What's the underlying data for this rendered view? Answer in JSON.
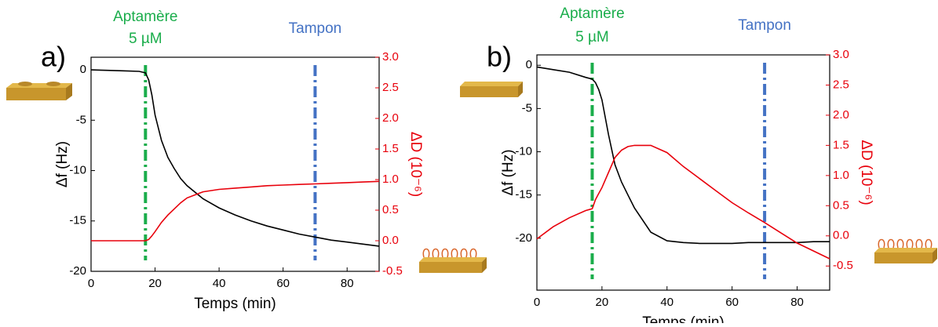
{
  "chart_data": [
    {
      "type": "line",
      "panel_label": "a)",
      "x_label": "Temps (min)",
      "y_label": "Δf (Hz)",
      "y2_label": "ΔD (10⁻⁶)",
      "x": [
        0,
        5,
        10,
        15,
        17,
        18,
        19,
        20,
        22,
        24,
        26,
        28,
        30,
        35,
        40,
        45,
        50,
        55,
        60,
        65,
        70,
        75,
        80,
        85,
        90
      ],
      "series": [
        {
          "name": "Δf",
          "color": "#000000",
          "values": [
            0,
            -0.05,
            -0.1,
            -0.15,
            -0.3,
            -1,
            -2.5,
            -4.5,
            -7,
            -8.7,
            -9.8,
            -10.8,
            -11.5,
            -12.8,
            -13.7,
            -14.4,
            -15,
            -15.5,
            -15.9,
            -16.3,
            -16.6,
            -16.9,
            -17.1,
            -17.3,
            -17.5
          ]
        },
        {
          "name": "ΔD",
          "color": "#e8000b",
          "axis": "y2",
          "values": [
            0,
            0,
            0,
            0,
            0,
            0.02,
            0.08,
            0.15,
            0.3,
            0.42,
            0.52,
            0.62,
            0.7,
            0.8,
            0.84,
            0.86,
            0.88,
            0.9,
            0.91,
            0.92,
            0.93,
            0.94,
            0.95,
            0.96,
            0.97
          ]
        }
      ],
      "xlim": [
        0,
        90
      ],
      "xticks": [
        0,
        20,
        40,
        60,
        80
      ],
      "ylim": [
        -20,
        1.25
      ],
      "yticks": [
        0,
        -5,
        -10,
        -15,
        -20
      ],
      "y2lim": [
        -0.5,
        3.0
      ],
      "y2ticks": [
        {
          "value": 3,
          "label": "3.0"
        },
        2.5,
        {
          "value": 2,
          "label": "2.0"
        },
        1.5,
        {
          "value": 1,
          "label": "1.0"
        },
        0.5,
        {
          "value": 0,
          "label": "0.0"
        },
        -0.5
      ],
      "annotations": [
        {
          "lines": [
            "Aptamère",
            "5 µM"
          ],
          "x": 17,
          "color": "#1aad4b"
        },
        {
          "lines": [
            "Tampon"
          ],
          "x": 70,
          "color": "#4472c4"
        }
      ]
    },
    {
      "type": "line",
      "panel_label": "b)",
      "x_label": "Temps (min)",
      "y_label": "Δf (Hz)",
      "y2_label": "ΔD (10⁻⁶)",
      "x": [
        0,
        5,
        10,
        15,
        17,
        18,
        19,
        20,
        22,
        24,
        26,
        28,
        30,
        35,
        40,
        45,
        50,
        55,
        60,
        65,
        70,
        75,
        80,
        85,
        90
      ],
      "series": [
        {
          "name": "Δf",
          "color": "#000000",
          "values": [
            -0.2,
            -0.5,
            -0.8,
            -1.4,
            -1.6,
            -2,
            -2.8,
            -4,
            -8,
            -11.5,
            -13.5,
            -15,
            -16.5,
            -19.3,
            -20.3,
            -20.5,
            -20.6,
            -20.6,
            -20.6,
            -20.5,
            -20.5,
            -20.5,
            -20.5,
            -20.4,
            -20.4
          ]
        },
        {
          "name": "ΔD",
          "color": "#e8000b",
          "axis": "y2",
          "values": [
            -0.05,
            0.15,
            0.3,
            0.42,
            0.45,
            0.6,
            0.7,
            0.8,
            1.05,
            1.3,
            1.42,
            1.48,
            1.5,
            1.5,
            1.38,
            1.15,
            0.95,
            0.75,
            0.55,
            0.38,
            0.22,
            0.05,
            -0.12,
            -0.25,
            -0.38
          ]
        }
      ],
      "xlim": [
        0,
        90
      ],
      "xticks": [
        0,
        20,
        40,
        60,
        80
      ],
      "ylim": [
        -26,
        1.2
      ],
      "yticks": [
        0,
        -5,
        -10,
        -15,
        -20
      ],
      "y2lim": [
        -0.9,
        3.0
      ],
      "y2ticks": [
        {
          "value": 3,
          "label": "3.0"
        },
        2.5,
        {
          "value": 2,
          "label": "2.0"
        },
        1.5,
        {
          "value": 1,
          "label": "1.0"
        },
        0.5,
        {
          "value": 0,
          "label": "0.0"
        },
        -0.5
      ],
      "annotations": [
        {
          "lines": [
            "Aptamère",
            "5 µM"
          ],
          "x": 17,
          "color": "#1aad4b"
        },
        {
          "lines": [
            "Tampon"
          ],
          "x": 70,
          "color": "#4472c4"
        }
      ]
    }
  ]
}
